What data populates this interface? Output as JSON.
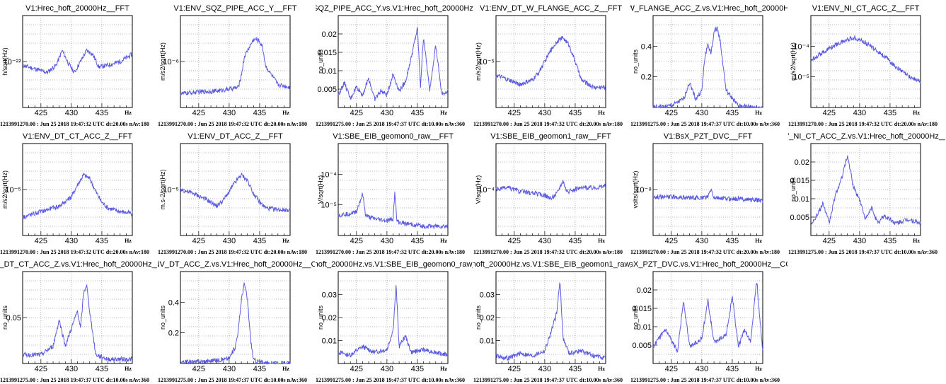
{
  "x_unit": "Hz",
  "x_ticks": [
    425,
    430,
    435
  ],
  "chart_data": [
    {
      "type": "line",
      "title": "V1:Hrec_hoft_20000Hz__FFT",
      "ylabel": "h/sqrt(Hz)",
      "y_ticks": [
        "10⁻²²"
      ],
      "footer": "1213991270.00 : Jun 25 2018 19:47:32 UTC dt:20.00s nAv:180",
      "x": [
        422,
        424,
        426,
        427.5,
        428.5,
        429.5,
        430.5,
        431.5,
        432.5,
        433.5,
        434.5,
        436,
        438,
        440
      ],
      "y": [
        0.46,
        0.42,
        0.38,
        0.46,
        0.62,
        0.48,
        0.38,
        0.5,
        0.62,
        0.58,
        0.44,
        0.46,
        0.5,
        0.58
      ],
      "ylim": [
        0,
        1
      ]
    },
    {
      "type": "line",
      "title": "V1:ENV_SQZ_PIPE_ACC_Y__FFT",
      "ylabel": "m/s2/sqrt(Hz)",
      "y_ticks": [
        "10⁻⁶"
      ],
      "footer": "1213991270.00 : Jun 25 2018 19:47:32 UTC dt:20.00s nAv:180",
      "x": [
        422,
        425,
        428,
        430,
        431.5,
        432,
        432.5,
        433,
        433.5,
        434,
        434.5,
        435,
        435.5,
        436,
        438,
        440
      ],
      "y": [
        0.15,
        0.17,
        0.18,
        0.2,
        0.22,
        0.35,
        0.55,
        0.62,
        0.68,
        0.74,
        0.74,
        0.72,
        0.65,
        0.45,
        0.25,
        0.22
      ],
      "ylim": [
        0,
        1
      ]
    },
    {
      "type": "line",
      "title": "_SQZ_PIPE_ACC_Y.vs.V1:Hrec_hoft_20000Hz_",
      "ylabel": "no_units",
      "y_ticks": [
        "0.005",
        "0.01",
        "0.015",
        "0.02"
      ],
      "footer": "1213991275.00 : Jun 25 2018 19:47:37 UTC dt:10.00s nAv:360",
      "x": [
        422,
        423,
        424,
        425,
        426,
        427,
        428,
        429,
        430,
        431,
        432,
        433,
        434,
        435,
        435.5,
        436,
        437,
        438,
        439,
        440
      ],
      "y": [
        0.003,
        0.006,
        0.002,
        0.005,
        0.003,
        0.007,
        0.002,
        0.004,
        0.003,
        0.008,
        0.004,
        0.006,
        0.012,
        0.019,
        0.005,
        0.017,
        0.004,
        0.015,
        0.003,
        0.004
      ],
      "ylim": [
        0,
        0.022
      ]
    },
    {
      "type": "line",
      "title": "V1:ENV_DT_W_FLANGE_ACC_Z__FFT",
      "ylabel": "m/s2/sqrt(Hz)",
      "y_ticks": [
        "10⁻⁵"
      ],
      "footer": "1213991270.00 : Jun 25 2018 19:47:32 UTC dt:20.00s nAv:180",
      "x": [
        422,
        424,
        426,
        428,
        429,
        430,
        431,
        432,
        433,
        434,
        435,
        436,
        438,
        440
      ],
      "y": [
        0.35,
        0.3,
        0.25,
        0.3,
        0.38,
        0.5,
        0.62,
        0.72,
        0.76,
        0.68,
        0.5,
        0.3,
        0.22,
        0.22
      ],
      "ylim": [
        0,
        1
      ]
    },
    {
      "type": "line",
      "title": "_W_FLANGE_ACC_Z.vs.V1:Hrec_hoft_20000Hz",
      "ylabel": "no_units",
      "y_ticks": [
        "0.2",
        "0.4"
      ],
      "footer": "1213991275.00 : Jun 25 2018 19:47:37 UTC dt:10.00s nAv:360",
      "x": [
        422,
        425,
        427,
        428,
        429,
        430,
        430.5,
        431,
        431.5,
        432,
        432.5,
        433,
        434,
        436,
        440
      ],
      "y": [
        0.0,
        0.01,
        0.05,
        0.15,
        0.05,
        0.1,
        0.3,
        0.38,
        0.32,
        0.45,
        0.48,
        0.4,
        0.1,
        0.01,
        0.0
      ],
      "ylim": [
        0,
        0.55
      ]
    },
    {
      "type": "line",
      "title": "V1:ENV_NI_CT_ACC_Z__FFT",
      "ylabel": "m/s2/sqrt(Hz)",
      "y_ticks": [
        "10⁻⁵",
        "10⁻⁴"
      ],
      "footer": "1213991270.00 : Jun 25 2018 19:47:32 UTC dt:20.00s nAv:180",
      "x": [
        422,
        424,
        426,
        428,
        429,
        430,
        432,
        434,
        436,
        438,
        440
      ],
      "y": [
        0.52,
        0.6,
        0.68,
        0.74,
        0.76,
        0.74,
        0.66,
        0.56,
        0.44,
        0.34,
        0.28
      ],
      "ylim": [
        0,
        1
      ]
    },
    {
      "type": "line",
      "title": "V1:ENV_DT_CT_ACC_Z__FFT",
      "ylabel": "m/s2/sqrt(Hz)",
      "y_ticks": [
        "10⁻⁵"
      ],
      "footer": "1213991270.00 : Jun 25 2018 19:47:32 UTC dt:20.00s nAv:180",
      "x": [
        422,
        424,
        426,
        428,
        430,
        431,
        432,
        433,
        434,
        435,
        436,
        438,
        440
      ],
      "y": [
        0.2,
        0.24,
        0.28,
        0.32,
        0.42,
        0.55,
        0.66,
        0.62,
        0.48,
        0.36,
        0.3,
        0.26,
        0.24
      ],
      "ylim": [
        0,
        1
      ]
    },
    {
      "type": "line",
      "title": "V1:ENV_DT_ACC_Z__FFT",
      "ylabel": "m.s-2/sqrt(Hz)",
      "y_ticks": [
        "10⁻⁵"
      ],
      "footer": "1213991270.00 : Jun 25 2018 19:47:32 UTC dt:20.00s nAv:180",
      "x": [
        422,
        424,
        426,
        428,
        429,
        430,
        431,
        432,
        433,
        434,
        435,
        436,
        438,
        440
      ],
      "y": [
        0.5,
        0.46,
        0.4,
        0.32,
        0.38,
        0.48,
        0.58,
        0.66,
        0.6,
        0.46,
        0.36,
        0.3,
        0.28,
        0.28
      ],
      "ylim": [
        0,
        1
      ]
    },
    {
      "type": "line",
      "title": "V1:SBE_EIB_geomon0_raw__FFT",
      "ylabel": "V/sqrt(Hz)",
      "y_ticks": [
        "10⁻⁵",
        "10⁻⁴"
      ],
      "footer": "1213991270.00 : Jun 25 2018 19:47:32 UTC dt:20.00s nAv:180",
      "x": [
        422,
        424,
        425,
        426,
        426.5,
        427,
        428,
        430,
        431,
        431.3,
        431.6,
        432,
        434,
        436,
        440
      ],
      "y": [
        0.22,
        0.24,
        0.26,
        0.45,
        0.22,
        0.2,
        0.18,
        0.16,
        0.18,
        0.48,
        0.16,
        0.14,
        0.12,
        0.1,
        0.1
      ],
      "ylim": [
        0,
        1
      ]
    },
    {
      "type": "line",
      "title": "V1:SBE_EIB_geomon1_raw__FFT",
      "ylabel": "V/sqrt(Hz)",
      "y_ticks": [
        "10⁻⁴"
      ],
      "footer": "1213991270.00 : Jun 25 2018 19:47:32 UTC dt:20.00s nAv:180",
      "x": [
        422,
        424,
        426,
        428,
        430,
        431,
        432,
        433,
        433.5,
        434,
        435,
        436,
        438,
        440
      ],
      "y": [
        0.5,
        0.52,
        0.48,
        0.46,
        0.44,
        0.4,
        0.46,
        0.6,
        0.5,
        0.48,
        0.5,
        0.52,
        0.52,
        0.54
      ],
      "ylim": [
        0,
        1
      ]
    },
    {
      "type": "line",
      "title": "V1:BsX_PZT_DVC__FFT",
      "ylabel": "volts/sqrt(Hz)",
      "y_ticks": [
        "10⁻⁸"
      ],
      "footer": "1213991270.00 : Jun 25 2018 19:47:32 UTC dt:20.00s nAv:180",
      "x": [
        422,
        424,
        426,
        428,
        430,
        431,
        431.5,
        432,
        434,
        436,
        438,
        440
      ],
      "y": [
        0.42,
        0.42,
        0.42,
        0.41,
        0.41,
        0.42,
        0.5,
        0.41,
        0.4,
        0.4,
        0.39,
        0.38
      ],
      "ylim": [
        0,
        1
      ]
    },
    {
      "type": "line",
      "title": "V_NI_CT_ACC_Z.vs.V1:Hrec_hoft_20000Hz__",
      "ylabel": "no_units",
      "y_ticks": [
        "0.005",
        "0.01",
        "0.015",
        "0.02"
      ],
      "footer": "1213991275.00 : Jun 25 2018 19:47:37 UTC dt:10.00s nAv:360",
      "x": [
        422,
        423,
        424,
        425,
        426,
        427,
        428,
        429,
        430,
        431,
        432,
        433,
        434,
        436,
        438,
        440
      ],
      "y": [
        0.003,
        0.005,
        0.008,
        0.003,
        0.01,
        0.014,
        0.02,
        0.012,
        0.009,
        0.004,
        0.007,
        0.003,
        0.005,
        0.003,
        0.004,
        0.003
      ],
      "ylim": [
        0,
        0.023
      ]
    },
    {
      "type": "line",
      "title": "V_DT_CT_ACC_Z.vs.V1:Hrec_hoft_20000Hz__",
      "ylabel": "no_units",
      "y_ticks": [
        "0.05"
      ],
      "footer": "1213991275.00 : Jun 25 2018 19:47:37 UTC dt:10.00s nAv:360",
      "x": [
        422,
        425,
        427,
        428,
        429,
        430,
        431,
        431.5,
        432,
        432.5,
        433,
        434,
        436,
        440
      ],
      "y": [
        0.01,
        0.01,
        0.02,
        0.05,
        0.02,
        0.04,
        0.06,
        0.04,
        0.08,
        0.09,
        0.06,
        0.01,
        0.005,
        0.005
      ],
      "ylim": [
        0,
        0.105
      ]
    },
    {
      "type": "line",
      "title": "NV_DT_ACC_Z.vs.V1:Hrec_hoft_20000Hz__C",
      "ylabel": "no_units",
      "y_ticks": [
        "0.2",
        "0.4"
      ],
      "footer": "1213991275.00 : Jun 25 2018 19:47:37 UTC dt:10.00s nAv:360",
      "x": [
        422,
        425,
        428,
        430,
        431,
        431.5,
        432,
        432.5,
        433,
        433.5,
        434,
        436,
        440
      ],
      "y": [
        0.01,
        0.01,
        0.02,
        0.03,
        0.1,
        0.2,
        0.38,
        0.48,
        0.38,
        0.15,
        0.02,
        0.0,
        0.0
      ],
      "ylim": [
        0,
        0.55
      ]
    },
    {
      "type": "line",
      "title": "_hoft_20000Hz.vs.V1:SBE_EIB_geomon0_raw_",
      "ylabel": "no_units",
      "y_ticks": [
        "0.01",
        "0.02",
        "0.03"
      ],
      "footer": "1213991275.00 : Jun 25 2018 19:47:37 UTC dt:10.00s nAv:360",
      "x": [
        422,
        424,
        426,
        428,
        430,
        431,
        431.5,
        432,
        433,
        434,
        436,
        438,
        440
      ],
      "y": [
        0.004,
        0.003,
        0.006,
        0.004,
        0.005,
        0.012,
        0.028,
        0.006,
        0.01,
        0.004,
        0.005,
        0.004,
        0.003
      ],
      "ylim": [
        0,
        0.033
      ]
    },
    {
      "type": "line",
      "title": "_hoft_20000Hz.vs.V1:SBE_EIB_geomon1_raw_",
      "ylabel": "no_units",
      "y_ticks": [
        "0.01",
        "0.02",
        "0.03"
      ],
      "footer": "1213991275.00 : Jun 25 2018 19:47:37 UTC dt:10.00s nAv:360",
      "x": [
        422,
        424,
        426,
        428,
        430,
        431,
        432,
        432.5,
        433,
        434,
        436,
        438,
        440
      ],
      "y": [
        0.003,
        0.002,
        0.004,
        0.003,
        0.005,
        0.012,
        0.02,
        0.033,
        0.01,
        0.004,
        0.005,
        0.003,
        0.002
      ],
      "ylim": [
        0,
        0.036
      ]
    },
    {
      "type": "line",
      "title": "BsX_PZT_DVC.vs.V1:Hrec_hoft_20000Hz__CO",
      "ylabel": "no_units",
      "y_ticks": [
        "0.005",
        "0.01",
        "0.015",
        "0.02"
      ],
      "footer": "1213991275.00 : Jun 25 2018 19:47:37 UTC dt:10.00s nAv:360",
      "x": [
        422,
        424,
        426,
        427,
        428,
        430,
        431,
        432,
        434,
        435,
        436,
        437,
        438,
        439,
        440
      ],
      "y": [
        0.004,
        0.008,
        0.003,
        0.015,
        0.004,
        0.006,
        0.015,
        0.005,
        0.007,
        0.016,
        0.004,
        0.008,
        0.005,
        0.02,
        0.003
      ],
      "ylim": [
        0,
        0.022
      ]
    }
  ]
}
